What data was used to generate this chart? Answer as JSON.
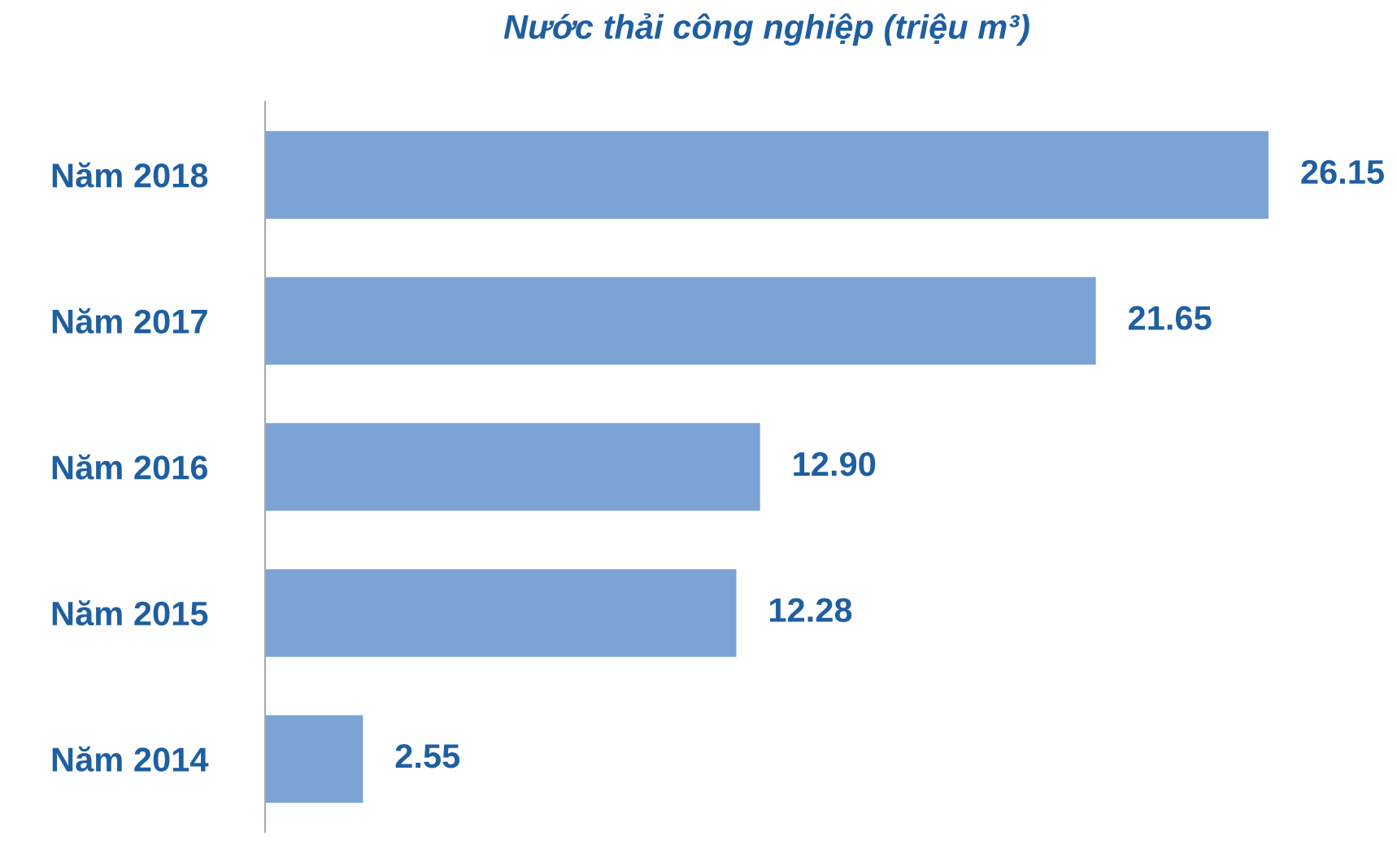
{
  "chart_data": {
    "type": "bar",
    "orientation": "horizontal",
    "title": "Nước thải công nghiệp (triệu m³)",
    "categories": [
      "Năm 2018",
      "Năm 2017",
      "Năm 2016",
      "Năm 2015",
      "Năm 2014"
    ],
    "values": [
      26.15,
      21.65,
      12.9,
      12.28,
      2.55
    ],
    "value_labels": [
      "26.15",
      "21.65",
      "12.90",
      "12.28",
      "2.55"
    ],
    "color": "#7ba3d4",
    "grid": false,
    "legend": false
  }
}
